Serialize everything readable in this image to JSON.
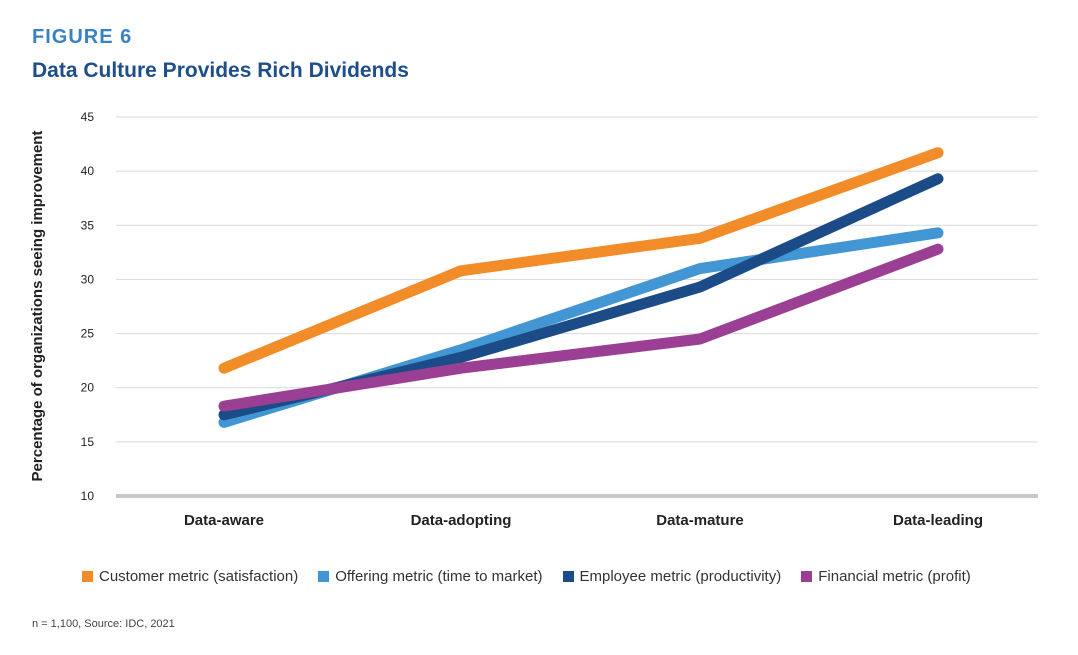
{
  "figure_label": "FIGURE 6",
  "title": "Data Culture Provides Rich Dividends",
  "source_note": "n = 1,100, Source: IDC, 2021",
  "chart_data": {
    "type": "line",
    "title": "Data Culture Provides Rich Dividends",
    "xlabel": "",
    "ylabel": "Percentage of organizations seeing improvement",
    "categories": [
      "Data-aware",
      "Data-adopting",
      "Data-mature",
      "Data-leading"
    ],
    "ylim": [
      10,
      45
    ],
    "yticks": [
      10,
      15,
      20,
      25,
      30,
      35,
      40,
      45
    ],
    "grid": true,
    "legend_position": "bottom",
    "series": [
      {
        "name": "Customer metric (satisfaction)",
        "color": "#f28c28",
        "values": [
          21.8,
          30.8,
          33.8,
          41.7
        ]
      },
      {
        "name": "Offering metric (time to market)",
        "color": "#4196d3",
        "values": [
          16.8,
          23.5,
          31.0,
          34.3
        ]
      },
      {
        "name": "Employee metric (productivity)",
        "color": "#1b4c88",
        "values": [
          17.5,
          22.8,
          29.3,
          39.3
        ]
      },
      {
        "name": "Financial metric (profit)",
        "color": "#9a3f93",
        "values": [
          18.3,
          21.8,
          24.5,
          32.8
        ]
      }
    ]
  }
}
